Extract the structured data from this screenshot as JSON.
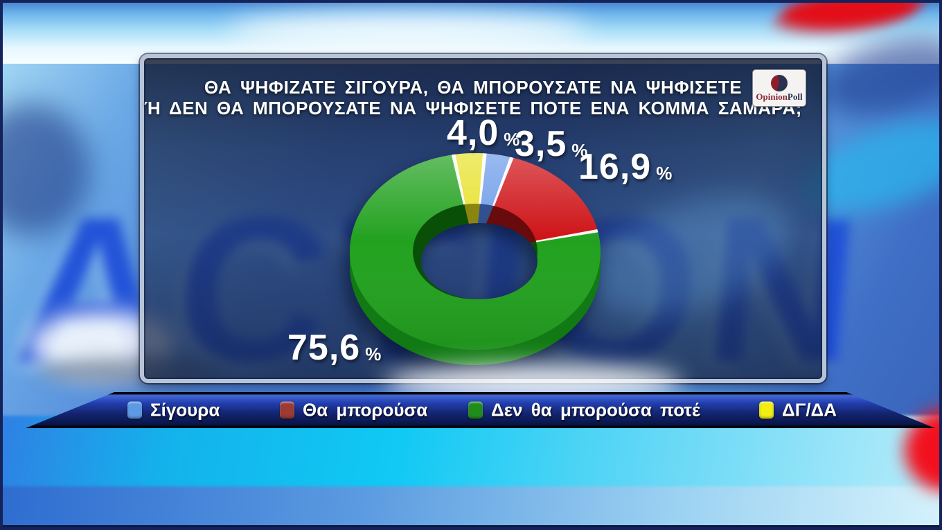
{
  "background": {
    "watermark": "ACTION"
  },
  "panel": {
    "title_line1": "ΘΑ ΨΗΦΙΖΑΤΕ ΣΙΓΟΥΡΑ, ΘΑ ΜΠΟΡΟΥΣΑΤΕ ΝΑ ΨΗΦΙΣΕΤΕ",
    "title_line2": "Ή ΔΕΝ ΘΑ ΜΠΟΡΟΥΣΑΤΕ ΝΑ ΨΗΦΙΣΕΤΕ ΠΟΤΕ ΕΝΑ ΚΟΜΜΑ ΣΑΜΑΡΑ;",
    "logo": {
      "text_part1": "Opinion",
      "text_part2": "Poll",
      "part1_color": "#8b2733",
      "part2_color": "#27304f"
    }
  },
  "chart_data": {
    "type": "pie",
    "subtype": "3d-donut",
    "title": "ΘΑ ΨΗΦΙΖΑΤΕ ΣΙΓΟΥΡΑ, ΘΑ ΜΠΟΡΟΥΣΑΤΕ ΝΑ ΨΗΦΙΣΕΤΕ Ή ΔΕΝ ΘΑ ΜΠΟΡΟΥΣΑΤΕ ΝΑ ΨΗΦΙΣΕΤΕ ΠΟΤΕ ΕΝΑ ΚΟΜΜΑ ΣΑΜΑΡΑ;",
    "unit": "%",
    "decimal_separator": ",",
    "legend_position": "bottom",
    "start_angle_deg": -10,
    "draw_order": [
      3,
      0,
      1,
      2
    ],
    "segments": [
      {
        "label": "Σίγουρα",
        "value": 3.5,
        "display": "3,5",
        "color": "#6e9ce9",
        "side_color": "#4a6cc2",
        "wall_color": "#31508f",
        "legend_color": "#5d9ae6"
      },
      {
        "label": "Θα μπορούσα",
        "value": 16.9,
        "display": "16,9",
        "color": "#ce1115",
        "side_color": "#9a0d10",
        "wall_color": "#690a0c",
        "legend_color": "#9c3b33"
      },
      {
        "label": "Δεν θα μπορούσα ποτέ",
        "value": 75.6,
        "display": "75,6",
        "color": "#22a11f",
        "side_color": "#117a14",
        "wall_color": "#0a4f08",
        "legend_color": "#1f8d1c"
      },
      {
        "label": "ΔΓ/ΔΑ",
        "value": 4.0,
        "display": "4,0",
        "color": "#e7e22d",
        "side_color": "#b4ab1e",
        "wall_color": "#8a8410",
        "legend_color": "#f1ee10"
      }
    ]
  }
}
